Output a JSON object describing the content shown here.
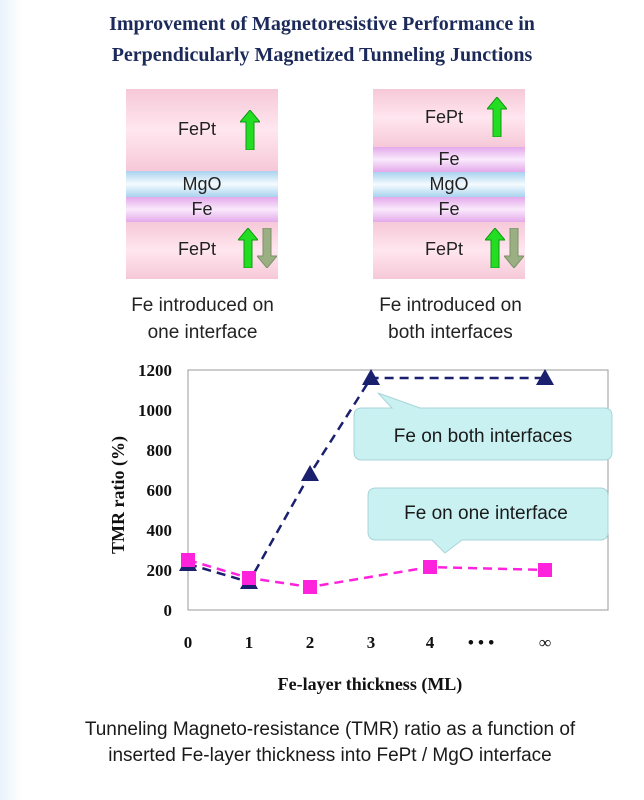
{
  "title": {
    "line1": "Improvement of Magnetoresistive Performance in",
    "line2": "Perpendicularly Magnetized Tunneling Junctions"
  },
  "left_stack": {
    "top_label": "FePt",
    "mgo_label": "MgO",
    "fe_label": "Fe",
    "bottom_label": "FePt",
    "caption_line1": "Fe introduced on",
    "caption_line2": "one interface"
  },
  "right_stack": {
    "top_label": "FePt",
    "fe_top_label": "Fe",
    "mgo_label": "MgO",
    "fe_bottom_label": "Fe",
    "bottom_label": "FePt",
    "caption_line1": "Fe introduced on",
    "caption_line2": "both interfaces"
  },
  "colors": {
    "both_series": "#1a1f6e",
    "one_series": "#ff22dd",
    "arrow_up": "#22dd22",
    "arrow_down": "#9ab082",
    "bubble_fill": "#c9f1f2"
  },
  "chart_data": {
    "type": "line",
    "ylabel": "TMR ratio (%)",
    "xlabel": "Fe-layer thickness (ML)",
    "categories": [
      "0",
      "1",
      "2",
      "3",
      "4",
      "• • •",
      "∞"
    ],
    "ylim": [
      0,
      1200
    ],
    "yticks": [
      "0",
      "200",
      "400",
      "600",
      "800",
      "1000",
      "1200"
    ],
    "series": [
      {
        "name": "Fe on both interfaces",
        "marker": "triangle",
        "x": [
          0,
          1,
          2,
          3,
          6
        ],
        "values": [
          230,
          140,
          680,
          1160,
          1160
        ]
      },
      {
        "name": "Fe on one interface",
        "marker": "square",
        "x": [
          0,
          1,
          2,
          4,
          6
        ],
        "values": [
          250,
          160,
          115,
          215,
          200
        ]
      }
    ]
  },
  "bottom_caption": {
    "line1": "Tunneling Magneto-resistance (TMR) ratio as a function of",
    "line2": "inserted Fe-layer thickness into FePt / MgO interface"
  }
}
